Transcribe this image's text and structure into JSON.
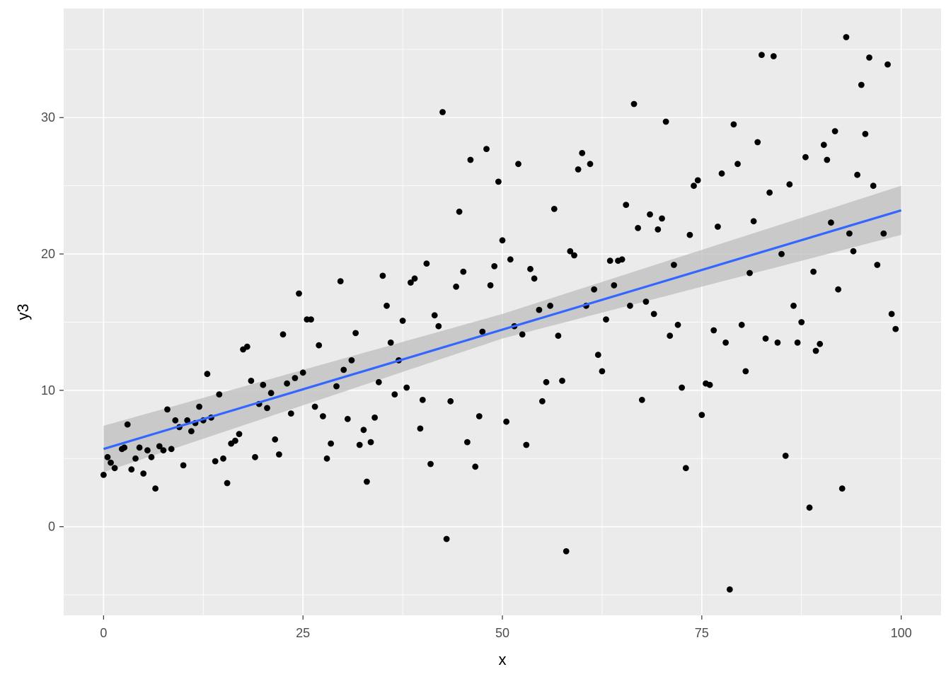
{
  "chart_data": {
    "type": "scatter",
    "title": "",
    "xlabel": "x",
    "ylabel": "y3",
    "xlim": [
      -5,
      105
    ],
    "ylim": [
      -6.5,
      38
    ],
    "x_ticks": [
      0,
      25,
      50,
      75,
      100
    ],
    "x_tick_labels": [
      "0",
      "25",
      "50",
      "75",
      "100"
    ],
    "y_ticks": [
      0,
      10,
      20,
      30
    ],
    "y_tick_labels": [
      "0",
      "10",
      "20",
      "30"
    ],
    "grid": true,
    "legend": "none",
    "colors": {
      "panel_background": "#ebebeb",
      "grid": "#ffffff",
      "points": "#000000",
      "fit_line": "#3366ff",
      "confidence_band": "#bdbdbd"
    },
    "fit": {
      "method": "linear",
      "intercept": 5.7,
      "slope": 0.175,
      "ribbon": [
        [
          0,
          4.0,
          7.4
        ],
        [
          50,
          13.8,
          15.6
        ],
        [
          100,
          21.4,
          25.0
        ]
      ]
    },
    "points": [
      [
        0,
        3.8
      ],
      [
        0.5,
        5.1
      ],
      [
        0.9,
        4.7
      ],
      [
        1.4,
        4.3
      ],
      [
        2.3,
        5.7
      ],
      [
        2.6,
        5.8
      ],
      [
        3.0,
        7.5
      ],
      [
        3.5,
        4.2
      ],
      [
        4.0,
        5.0
      ],
      [
        4.5,
        5.8
      ],
      [
        5.0,
        3.9
      ],
      [
        5.5,
        5.6
      ],
      [
        6.0,
        5.1
      ],
      [
        6.5,
        2.8
      ],
      [
        7.0,
        5.9
      ],
      [
        7.5,
        5.6
      ],
      [
        8.0,
        8.6
      ],
      [
        8.5,
        5.7
      ],
      [
        9.0,
        7.8
      ],
      [
        9.5,
        7.3
      ],
      [
        10.0,
        4.5
      ],
      [
        10.5,
        7.8
      ],
      [
        11.0,
        7.0
      ],
      [
        11.5,
        7.6
      ],
      [
        12.0,
        8.8
      ],
      [
        12.5,
        7.8
      ],
      [
        13.0,
        11.2
      ],
      [
        13.5,
        8.0
      ],
      [
        14.0,
        4.8
      ],
      [
        14.5,
        9.7
      ],
      [
        15.0,
        5.0
      ],
      [
        15.5,
        3.2
      ],
      [
        16.0,
        6.1
      ],
      [
        16.5,
        6.3
      ],
      [
        17.0,
        6.8
      ],
      [
        17.5,
        13.0
      ],
      [
        18.0,
        13.2
      ],
      [
        18.5,
        10.7
      ],
      [
        19.0,
        5.1
      ],
      [
        19.5,
        9.0
      ],
      [
        20.0,
        10.4
      ],
      [
        20.5,
        8.7
      ],
      [
        21.0,
        9.8
      ],
      [
        21.5,
        6.4
      ],
      [
        22.0,
        5.3
      ],
      [
        22.5,
        14.1
      ],
      [
        23.0,
        10.5
      ],
      [
        23.5,
        8.3
      ],
      [
        24.0,
        10.9
      ],
      [
        24.5,
        17.1
      ],
      [
        25.0,
        11.3
      ],
      [
        25.5,
        15.2
      ],
      [
        26.0,
        15.2
      ],
      [
        26.5,
        8.8
      ],
      [
        27.0,
        13.3
      ],
      [
        27.5,
        8.1
      ],
      [
        28.0,
        5.0
      ],
      [
        28.5,
        6.1
      ],
      [
        29.2,
        10.3
      ],
      [
        29.7,
        18.0
      ],
      [
        30.1,
        11.5
      ],
      [
        30.6,
        7.9
      ],
      [
        31.1,
        12.2
      ],
      [
        31.6,
        14.2
      ],
      [
        32.1,
        6.0
      ],
      [
        32.6,
        7.1
      ],
      [
        33.0,
        3.3
      ],
      [
        33.5,
        6.2
      ],
      [
        34.0,
        8.0
      ],
      [
        34.5,
        10.6
      ],
      [
        35.0,
        18.4
      ],
      [
        35.5,
        16.2
      ],
      [
        36.0,
        13.5
      ],
      [
        36.5,
        9.7
      ],
      [
        37.0,
        12.2
      ],
      [
        37.5,
        15.1
      ],
      [
        38.0,
        10.2
      ],
      [
        38.5,
        17.9
      ],
      [
        39.0,
        18.2
      ],
      [
        39.7,
        7.2
      ],
      [
        40.0,
        9.3
      ],
      [
        40.5,
        19.3
      ],
      [
        41.0,
        4.6
      ],
      [
        41.5,
        15.5
      ],
      [
        42.0,
        14.7
      ],
      [
        42.5,
        30.4
      ],
      [
        43.0,
        -0.9
      ],
      [
        43.5,
        9.2
      ],
      [
        44.2,
        17.6
      ],
      [
        44.6,
        23.1
      ],
      [
        45.1,
        18.7
      ],
      [
        45.6,
        6.2
      ],
      [
        46.0,
        26.9
      ],
      [
        46.6,
        4.4
      ],
      [
        47.1,
        8.1
      ],
      [
        47.5,
        14.3
      ],
      [
        48.0,
        27.7
      ],
      [
        48.5,
        17.7
      ],
      [
        49.0,
        19.1
      ],
      [
        49.5,
        25.3
      ],
      [
        50.0,
        21.0
      ],
      [
        50.5,
        7.7
      ],
      [
        51.0,
        19.6
      ],
      [
        51.5,
        14.7
      ],
      [
        52.0,
        26.6
      ],
      [
        52.5,
        14.1
      ],
      [
        53.0,
        6.0
      ],
      [
        53.5,
        18.9
      ],
      [
        54.0,
        18.2
      ],
      [
        54.6,
        15.9
      ],
      [
        55.0,
        9.2
      ],
      [
        55.5,
        10.6
      ],
      [
        56.0,
        16.2
      ],
      [
        56.5,
        23.3
      ],
      [
        57.0,
        14.0
      ],
      [
        57.5,
        10.7
      ],
      [
        58.0,
        -1.8
      ],
      [
        58.5,
        20.2
      ],
      [
        59.0,
        19.9
      ],
      [
        59.5,
        26.2
      ],
      [
        60.0,
        27.4
      ],
      [
        60.5,
        16.2
      ],
      [
        61.0,
        26.6
      ],
      [
        61.5,
        17.4
      ],
      [
        62.0,
        12.6
      ],
      [
        62.5,
        11.4
      ],
      [
        63.0,
        15.2
      ],
      [
        63.5,
        19.5
      ],
      [
        64.0,
        17.7
      ],
      [
        64.5,
        19.5
      ],
      [
        65.0,
        19.6
      ],
      [
        65.5,
        23.6
      ],
      [
        66.0,
        16.2
      ],
      [
        66.5,
        31.0
      ],
      [
        67.0,
        21.9
      ],
      [
        67.5,
        9.3
      ],
      [
        68.0,
        16.5
      ],
      [
        68.5,
        22.9
      ],
      [
        69.0,
        15.6
      ],
      [
        69.5,
        21.8
      ],
      [
        70.0,
        22.6
      ],
      [
        70.5,
        29.7
      ],
      [
        71.0,
        14.0
      ],
      [
        71.5,
        19.2
      ],
      [
        72.0,
        14.8
      ],
      [
        72.5,
        10.2
      ],
      [
        73.0,
        4.3
      ],
      [
        73.5,
        21.4
      ],
      [
        74.0,
        25.0
      ],
      [
        74.5,
        25.4
      ],
      [
        75.0,
        8.2
      ],
      [
        75.5,
        10.5
      ],
      [
        76.0,
        10.4
      ],
      [
        76.5,
        14.4
      ],
      [
        77.0,
        22.0
      ],
      [
        77.5,
        25.9
      ],
      [
        78.0,
        13.5
      ],
      [
        78.5,
        -4.6
      ],
      [
        79.0,
        29.5
      ],
      [
        79.5,
        26.6
      ],
      [
        80.0,
        14.8
      ],
      [
        80.5,
        11.4
      ],
      [
        81.0,
        18.6
      ],
      [
        81.5,
        22.4
      ],
      [
        82.0,
        28.2
      ],
      [
        82.5,
        34.6
      ],
      [
        83.0,
        13.8
      ],
      [
        83.5,
        24.5
      ],
      [
        84.0,
        34.5
      ],
      [
        84.5,
        13.5
      ],
      [
        85.0,
        20.0
      ],
      [
        85.5,
        5.2
      ],
      [
        86.0,
        25.1
      ],
      [
        86.5,
        16.2
      ],
      [
        87.0,
        13.5
      ],
      [
        87.5,
        15.0
      ],
      [
        88.0,
        27.1
      ],
      [
        88.5,
        1.4
      ],
      [
        89.0,
        18.7
      ],
      [
        89.3,
        12.9
      ],
      [
        89.8,
        13.4
      ],
      [
        90.3,
        28.0
      ],
      [
        90.7,
        26.9
      ],
      [
        91.2,
        22.3
      ],
      [
        91.7,
        29.0
      ],
      [
        92.1,
        17.4
      ],
      [
        92.6,
        2.8
      ],
      [
        93.1,
        35.9
      ],
      [
        93.5,
        21.5
      ],
      [
        94.0,
        20.2
      ],
      [
        94.5,
        25.8
      ],
      [
        95.0,
        32.4
      ],
      [
        95.5,
        28.8
      ],
      [
        96.0,
        34.4
      ],
      [
        96.5,
        25.0
      ],
      [
        97.0,
        19.2
      ],
      [
        97.8,
        21.5
      ],
      [
        98.3,
        33.9
      ],
      [
        98.8,
        15.6
      ],
      [
        99.3,
        14.5
      ]
    ]
  }
}
